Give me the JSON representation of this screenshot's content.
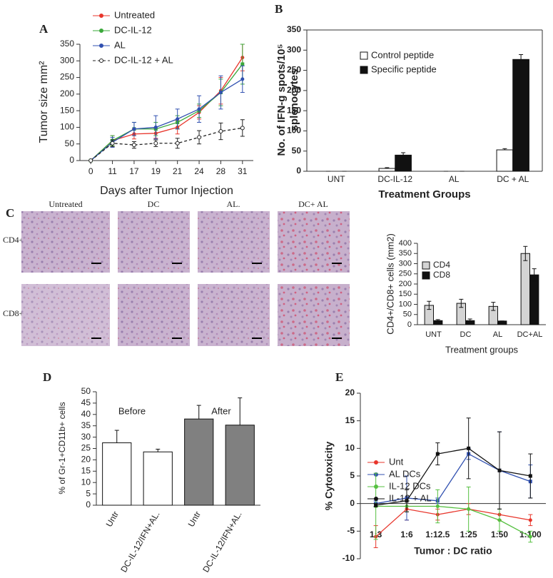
{
  "micrographs": {
    "panel": "C",
    "columns": [
      "Untreated",
      "DC",
      "AL.",
      "DC+ AL"
    ],
    "rows": [
      "CD4+",
      "CD8+"
    ]
  },
  "chart_data": [
    {
      "type": "line",
      "panel": "A",
      "xlabel": "Days after Tumor Injection",
      "ylabel": "Tumor size mm²",
      "categories": [
        "0",
        "11",
        "17",
        "19",
        "21",
        "24",
        "28",
        "31"
      ],
      "series": [
        {
          "name": "Untreated",
          "color": "#e8352b",
          "values": [
            0,
            60,
            80,
            82,
            100,
            145,
            210,
            310
          ],
          "errors": [
            0,
            15,
            15,
            15,
            20,
            20,
            40,
            40
          ]
        },
        {
          "name": "DC-IL-12",
          "color": "#3aa83a",
          "values": [
            0,
            60,
            95,
            95,
            115,
            150,
            205,
            290
          ],
          "errors": [
            0,
            15,
            20,
            20,
            20,
            20,
            40,
            60
          ]
        },
        {
          "name": "AL",
          "color": "#3050b0",
          "values": [
            0,
            55,
            95,
            100,
            125,
            155,
            205,
            245
          ],
          "errors": [
            0,
            15,
            20,
            35,
            30,
            40,
            50,
            40
          ]
        },
        {
          "name": "DC-IL-12 + AL",
          "color": "#222222",
          "dashed": true,
          "values": [
            0,
            52,
            47,
            52,
            52,
            70,
            88,
            98
          ],
          "errors": [
            0,
            10,
            10,
            10,
            15,
            20,
            25,
            25
          ]
        }
      ],
      "ylim": [
        0,
        350
      ],
      "yticks": [
        0,
        50,
        100,
        150,
        200,
        250,
        300,
        350
      ]
    },
    {
      "type": "bar",
      "panel": "B",
      "xlabel": "Treatment Groups",
      "ylabel": [
        "No. of IFN-g spots/10⁵",
        "splenocytes"
      ],
      "categories": [
        "UNT",
        "DC-IL-12",
        "AL",
        "DC + AL"
      ],
      "series": [
        {
          "name": "Control peptide",
          "color": "#ffffff",
          "values": [
            0,
            7,
            0,
            53
          ],
          "errors": [
            0,
            2,
            0,
            3
          ]
        },
        {
          "name": "Specific peptide",
          "color": "#111111",
          "values": [
            0,
            40,
            0,
            277
          ],
          "errors": [
            0,
            6,
            0,
            12
          ]
        }
      ],
      "ylim": [
        0,
        350
      ],
      "yticks": [
        0,
        50,
        100,
        150,
        200,
        250,
        300,
        350
      ]
    },
    {
      "type": "bar",
      "xlabel": "Treatment groups",
      "ylabel": "CD4+/CD8+ cells (mm2)",
      "categories": [
        "UNT",
        "DC",
        "AL",
        "DC+AL"
      ],
      "series": [
        {
          "name": "CD4",
          "color": "#d4d4d4",
          "values": [
            95,
            105,
            90,
            350
          ],
          "errors": [
            20,
            20,
            20,
            35
          ]
        },
        {
          "name": "CD8",
          "color": "#111111",
          "values": [
            20,
            20,
            18,
            245
          ],
          "errors": [
            5,
            8,
            0,
            30
          ]
        }
      ],
      "ylim": [
        0,
        400
      ],
      "yticks": [
        0,
        50,
        100,
        150,
        200,
        250,
        300,
        350,
        400
      ]
    },
    {
      "type": "bar",
      "panel": "D",
      "ylabel": "% of Gr-1+CD11b+ cells",
      "annotations": [
        "Before",
        "After"
      ],
      "categories": [
        "Untr",
        "DC-IL-12/IFN+AL.",
        "Untr",
        "DC-IL-12/IFN+AL."
      ],
      "values": [
        27.5,
        23.5,
        38,
        35.3
      ],
      "errors": [
        5.5,
        1.2,
        6,
        12
      ],
      "colors": [
        "#ffffff",
        "#ffffff",
        "#808080",
        "#808080"
      ],
      "ylim": [
        0,
        50
      ],
      "yticks": [
        0,
        5,
        10,
        15,
        20,
        25,
        30,
        35,
        40,
        45,
        50
      ]
    },
    {
      "type": "line",
      "panel": "E",
      "xlabel": "Tumor : DC ratio",
      "ylabel": "% Cytotoxicity",
      "categories": [
        "1:3",
        "1:6",
        "1:12.5",
        "1:25",
        "1:50",
        "1:100"
      ],
      "series": [
        {
          "name": "Unt",
          "color": "#e8352b",
          "values": [
            -6,
            -1,
            -2,
            -1,
            -2,
            -3
          ],
          "errors": [
            2,
            2,
            1,
            1,
            1,
            1
          ]
        },
        {
          "name": "AL DCs",
          "color": "#3050b0",
          "values": [
            0,
            1,
            0.5,
            9,
            6,
            4
          ],
          "errors": [
            0.5,
            4,
            0.5,
            1,
            7,
            3
          ]
        },
        {
          "name": "IL-12 DCs",
          "color": "#55c040",
          "values": [
            -0.5,
            -0.5,
            -0.5,
            -1,
            -3,
            -6
          ],
          "errors": [
            6,
            1,
            3,
            4,
            2,
            1
          ]
        },
        {
          "name": "IL-12 + AL",
          "color": "#111111",
          "values": [
            -0.3,
            0.5,
            9,
            10,
            6,
            5
          ],
          "errors": [
            0.3,
            2,
            2,
            5.5,
            7,
            4
          ]
        }
      ],
      "ylim": [
        -10,
        20
      ],
      "yticks": [
        -10,
        -5,
        0,
        5,
        10,
        15,
        20
      ]
    }
  ]
}
